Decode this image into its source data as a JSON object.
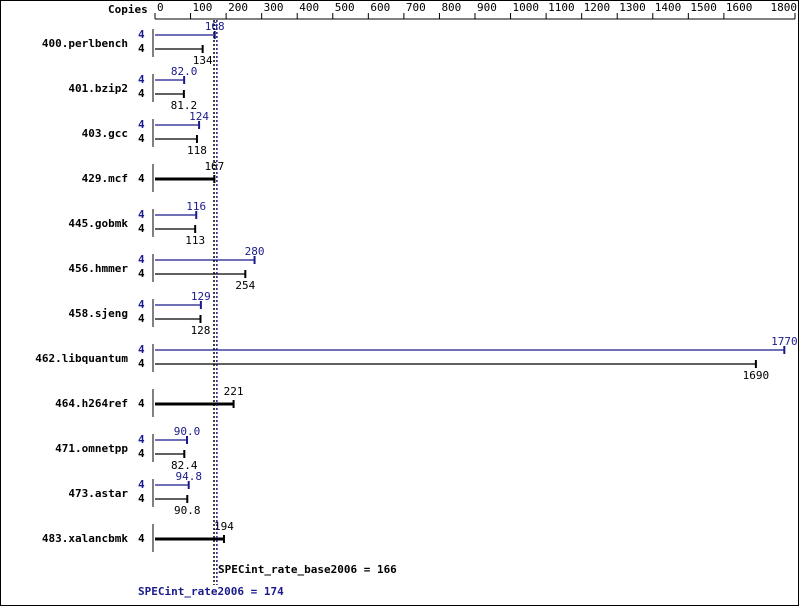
{
  "chart_data": {
    "type": "bar",
    "orientation": "horizontal",
    "copies_label": "Copies",
    "categories": [
      "400.perlbench",
      "401.bzip2",
      "403.gcc",
      "429.mcf",
      "445.gobmk",
      "456.hmmer",
      "458.sjeng",
      "462.libquantum",
      "464.h264ref",
      "471.omnetpp",
      "473.astar",
      "483.xalancbmk"
    ],
    "series": [
      {
        "color": "#1a1a8c",
        "copies": [
          4,
          4,
          4,
          null,
          4,
          4,
          4,
          4,
          null,
          4,
          4,
          null
        ],
        "values": [
          168,
          82,
          124,
          null,
          116,
          280,
          129,
          1770,
          null,
          90,
          94.8,
          null
        ],
        "value_labels": [
          "168",
          "82.0",
          "124",
          null,
          "116",
          "280",
          "129",
          "1770",
          null,
          "90.0",
          "94.8",
          null
        ]
      },
      {
        "color": "#000000",
        "copies": [
          4,
          4,
          4,
          4,
          4,
          4,
          4,
          4,
          4,
          4,
          4,
          4
        ],
        "values": [
          134,
          81.2,
          118,
          167,
          113,
          254,
          128,
          1690,
          221,
          82.4,
          90.8,
          194
        ]
      }
    ],
    "xlim": [
      0,
      1800
    ],
    "xticks": [
      0,
      100,
      200,
      300,
      400,
      500,
      600,
      700,
      800,
      900,
      1000,
      1100,
      1200,
      1300,
      1400,
      1500,
      1600,
      1800
    ],
    "reference_lines": [
      {
        "label": "SPECint_rate_base2006 = 166",
        "value": 166,
        "color": "#000000"
      },
      {
        "label": "SPECint_rate2006 = 174",
        "value": 174,
        "color": "#1a1a8c"
      }
    ]
  }
}
